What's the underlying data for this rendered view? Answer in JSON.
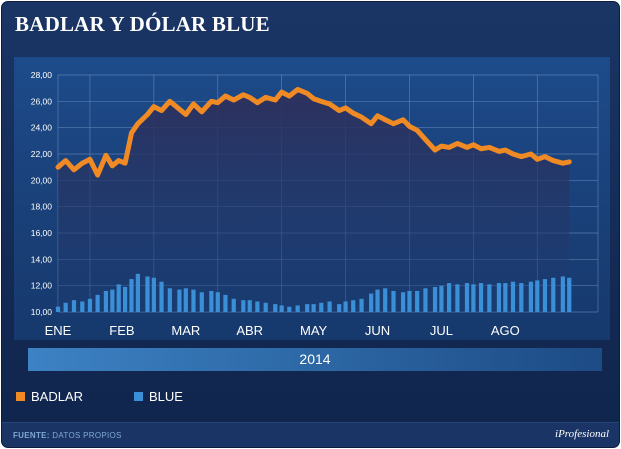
{
  "title": "BADLAR Y DÓLAR BLUE",
  "year_label": "2014",
  "legend": [
    {
      "label": "BADLAR",
      "color": "#f08a24"
    },
    {
      "label": "BLUE",
      "color": "#3a8fd6"
    }
  ],
  "footer": {
    "source_label": "FUENTE:",
    "source_text": "DATOS PROPIOS",
    "brand": "iProfesional"
  },
  "chart_data": {
    "type": "line",
    "categories": [
      "ENE",
      "FEB",
      "MAR",
      "ABR",
      "MAY",
      "JUN",
      "JUL",
      "AGO"
    ],
    "y_ticks": [
      "28,00",
      "26,00",
      "24,00",
      "22,00",
      "20,00",
      "18,00",
      "16,00",
      "14,00",
      "12,00",
      "10,00"
    ],
    "ylim": [
      10,
      28
    ],
    "x_range": [
      0,
      8.45
    ],
    "grid": true,
    "series": [
      {
        "name": "BADLAR",
        "style": "line",
        "color": "#f08a24",
        "x": [
          0.0,
          0.12,
          0.25,
          0.38,
          0.5,
          0.62,
          0.75,
          0.85,
          0.95,
          1.05,
          1.15,
          1.25,
          1.4,
          1.5,
          1.62,
          1.75,
          1.9,
          2.0,
          2.12,
          2.25,
          2.4,
          2.5,
          2.62,
          2.75,
          2.9,
          3.0,
          3.12,
          3.25,
          3.4,
          3.5,
          3.62,
          3.75,
          3.9,
          4.0,
          4.12,
          4.25,
          4.4,
          4.5,
          4.62,
          4.75,
          4.9,
          5.0,
          5.12,
          5.25,
          5.4,
          5.5,
          5.62,
          5.75,
          5.9,
          6.0,
          6.12,
          6.25,
          6.4,
          6.5,
          6.62,
          6.75,
          6.9,
          7.0,
          7.12,
          7.25,
          7.4,
          7.5,
          7.62,
          7.75,
          7.9,
          8.0
        ],
        "values": [
          21.0,
          21.5,
          20.8,
          21.3,
          21.6,
          20.4,
          21.9,
          21.1,
          21.5,
          21.3,
          23.6,
          24.3,
          25.0,
          25.6,
          25.3,
          26.0,
          25.4,
          25.0,
          25.8,
          25.2,
          26.0,
          25.9,
          26.4,
          26.1,
          26.5,
          26.3,
          25.9,
          26.3,
          26.1,
          26.7,
          26.4,
          26.9,
          26.6,
          26.2,
          26.0,
          25.8,
          25.3,
          25.5,
          25.1,
          24.8,
          24.3,
          24.9,
          24.6,
          24.3,
          24.6,
          24.1,
          23.8,
          23.1,
          22.3,
          22.6,
          22.5,
          22.8,
          22.5,
          22.7,
          22.4,
          22.5,
          22.2,
          22.3,
          22.0,
          21.8,
          22.0,
          21.6,
          21.8,
          21.5,
          21.3,
          21.4
        ]
      },
      {
        "name": "BLUE",
        "style": "bar",
        "color": "#3a8fd6",
        "x": [
          0.0,
          0.12,
          0.25,
          0.38,
          0.5,
          0.62,
          0.75,
          0.85,
          0.95,
          1.05,
          1.15,
          1.25,
          1.4,
          1.5,
          1.62,
          1.75,
          1.9,
          2.0,
          2.12,
          2.25,
          2.4,
          2.5,
          2.62,
          2.75,
          2.9,
          3.0,
          3.12,
          3.25,
          3.4,
          3.5,
          3.62,
          3.75,
          3.9,
          4.0,
          4.12,
          4.25,
          4.4,
          4.5,
          4.62,
          4.75,
          4.9,
          5.0,
          5.12,
          5.25,
          5.4,
          5.5,
          5.62,
          5.75,
          5.9,
          6.0,
          6.12,
          6.25,
          6.4,
          6.5,
          6.62,
          6.75,
          6.9,
          7.0,
          7.12,
          7.25,
          7.4,
          7.5,
          7.62,
          7.75,
          7.9,
          8.0
        ],
        "values": [
          10.4,
          10.7,
          10.9,
          10.8,
          11.0,
          11.3,
          11.6,
          11.7,
          12.1,
          11.9,
          12.5,
          12.9,
          12.7,
          12.6,
          12.3,
          11.8,
          11.7,
          11.8,
          11.7,
          11.5,
          11.6,
          11.5,
          11.3,
          11.0,
          10.9,
          10.9,
          10.8,
          10.7,
          10.6,
          10.5,
          10.4,
          10.5,
          10.6,
          10.6,
          10.7,
          10.8,
          10.6,
          10.8,
          10.9,
          11.0,
          11.4,
          11.7,
          11.8,
          11.6,
          11.5,
          11.6,
          11.6,
          11.8,
          11.9,
          12.0,
          12.2,
          12.1,
          12.2,
          12.1,
          12.2,
          12.1,
          12.2,
          12.2,
          12.3,
          12.2,
          12.3,
          12.4,
          12.5,
          12.6,
          12.7,
          12.6
        ]
      }
    ]
  }
}
